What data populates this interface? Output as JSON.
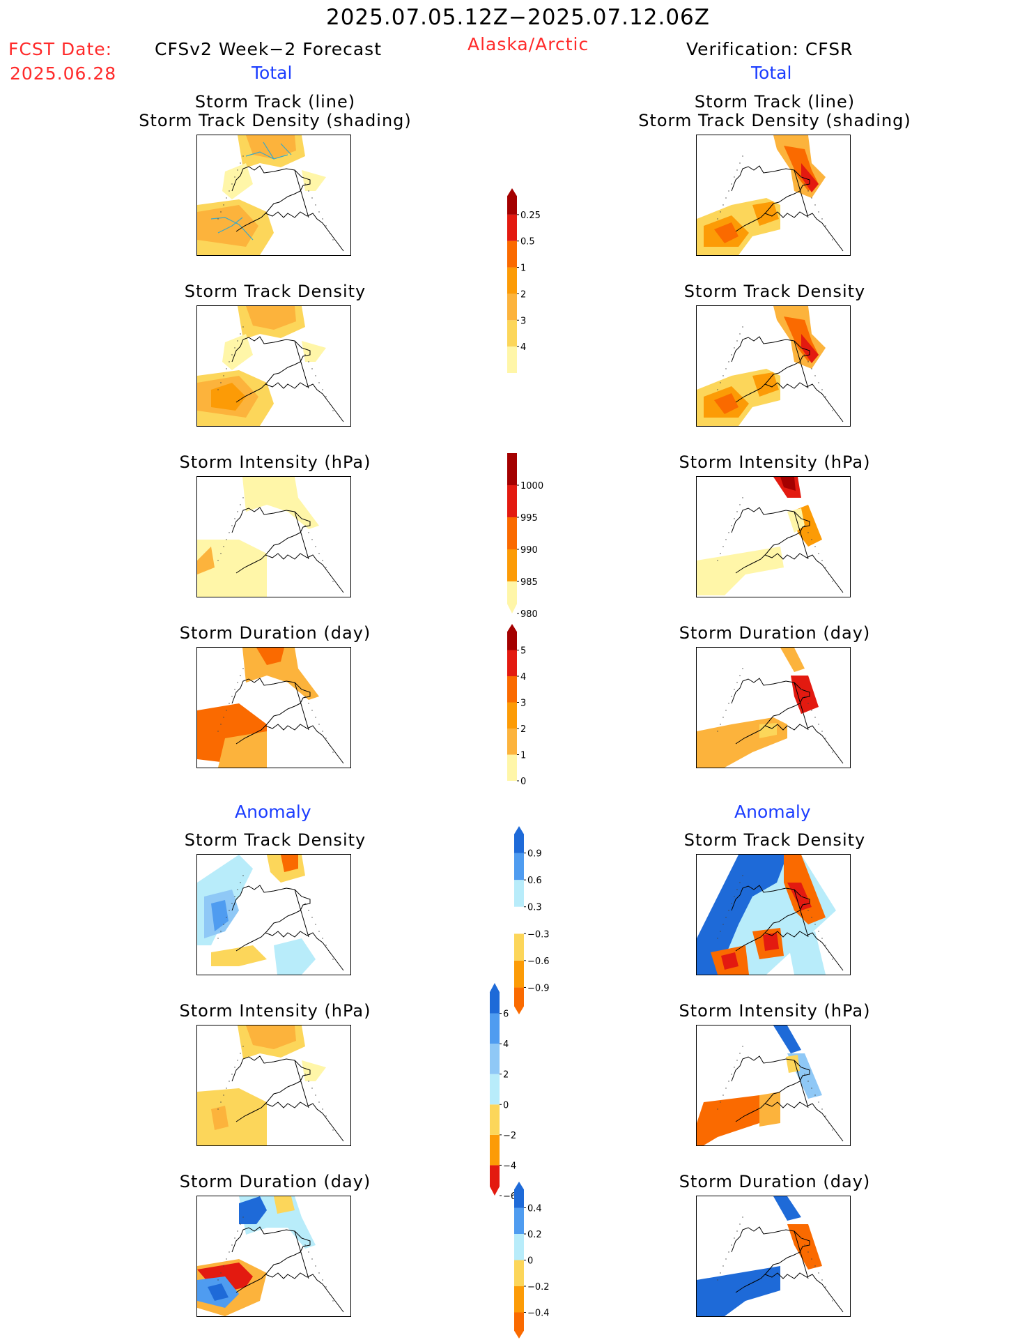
{
  "header": {
    "title": "2025.07.05.12Z−2025.07.12.06Z",
    "fcst_label": "FCST Date:",
    "fcst_date": "2025.06.28",
    "left_title": "CFSv2 Week−2 Forecast",
    "region": "Alaska/Arctic",
    "right_title": "Verification: CFSR",
    "total_label": "Total",
    "anomaly_label": "Anomaly"
  },
  "panel_titles": {
    "track": "Storm Track (line)\nStorm Track Density (shading)",
    "density": "Storm Track Density",
    "intensity": "Storm Intensity (hPa)",
    "duration": "Storm Duration (day)"
  },
  "colors": {
    "pale_yellow": "#fff6a8",
    "yellow": "#fcd65a",
    "light_orange": "#fcb33c",
    "orange": "#fc9b06",
    "dark_orange": "#fa6a00",
    "red": "#e31a10",
    "dark_red": "#a40000",
    "light_cyan": "#b8ecfa",
    "light_blue": "#8fc8f6",
    "mid_blue": "#4f9cf0",
    "blue": "#1e6ad8",
    "track_line": "#3aa8c8"
  },
  "chart_data": {
    "type": "heatmap",
    "map_region": "Alaska/Arctic",
    "columns": [
      "CFSv2 Week−2 Forecast",
      "Verification: CFSR"
    ],
    "sections": [
      "Total",
      "Anomaly"
    ],
    "colorbars": [
      {
        "variable": "Storm Track Density (Total)",
        "ticks": [
          "0.25",
          "0.5",
          "1",
          "2",
          "3",
          "4"
        ],
        "colors": [
          "#fff6a8",
          "#fcd65a",
          "#fcb33c",
          "#fc9b06",
          "#fa6a00",
          "#e31a10",
          "#a40000"
        ]
      },
      {
        "variable": "Storm Intensity (Total, hPa)",
        "ticks": [
          "1000",
          "995",
          "990",
          "985",
          "980"
        ],
        "colors": [
          "#fff6a8",
          "#fc9b06",
          "#fa6a00",
          "#e31a10",
          "#a40000"
        ]
      },
      {
        "variable": "Storm Duration (Total, day)",
        "ticks": [
          "5",
          "4",
          "3",
          "2",
          "1",
          "0"
        ],
        "colors": [
          "#fff6a8",
          "#fcb33c",
          "#fc9b06",
          "#fa6a00",
          "#e31a10",
          "#a40000"
        ]
      },
      {
        "variable": "Storm Track Density (Anomaly)",
        "ticks": [
          "0.9",
          "0.6",
          "0.3",
          "−0.3",
          "−0.6",
          "−0.9"
        ],
        "colors": [
          "#fa6a00",
          "#fc9b06",
          "#fcd65a",
          "#ffffff",
          "#b8ecfa",
          "#4f9cf0",
          "#1e6ad8"
        ]
      },
      {
        "variable": "Storm Intensity (Anomaly, hPa)",
        "ticks": [
          "6",
          "4",
          "2",
          "0",
          "−2",
          "−4",
          "−6"
        ],
        "colors": [
          "#e31a10",
          "#fc9b06",
          "#fcd65a",
          "#b8ecfa",
          "#8fc8f6",
          "#4f9cf0",
          "#1e6ad8"
        ]
      },
      {
        "variable": "Storm Duration (Anomaly, day)",
        "ticks": [
          "0.4",
          "0.2",
          "0",
          "−0.2",
          "−0.4"
        ],
        "colors": [
          "#fa6a00",
          "#fc9b06",
          "#fcd65a",
          "#b8ecfa",
          "#4f9cf0",
          "#1e6ad8"
        ]
      }
    ]
  }
}
